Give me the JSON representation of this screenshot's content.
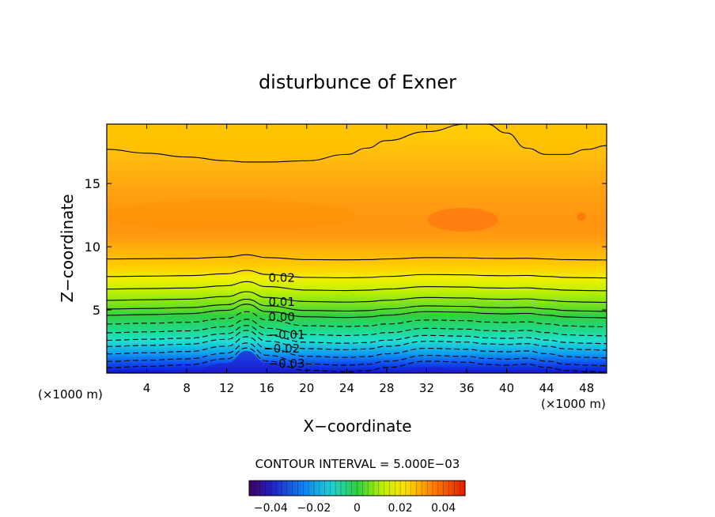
{
  "chart_data": {
    "type": "heatmap",
    "title": "disturbunce of Exner",
    "xlabel": "X−coordinate",
    "ylabel": "Z−coordinate",
    "x_unit_left": "(×1000 m)",
    "x_unit_right": "(×1000 m)",
    "xlim": [
      0,
      50
    ],
    "ylim": [
      0,
      19.7
    ],
    "x_ticks": [
      4,
      8,
      12,
      16,
      20,
      24,
      28,
      32,
      36,
      40,
      44,
      48
    ],
    "y_ticks": [
      5,
      10,
      15
    ],
    "contour_interval_text": "CONTOUR INTERVAL = 5.000E−03",
    "contour_labels": [
      {
        "text": "0.02",
        "x": 17.5,
        "z": 7.6
      },
      {
        "text": "0.01",
        "x": 17.5,
        "z": 5.7
      },
      {
        "text": "0.00",
        "x": 17.5,
        "z": 4.5
      },
      {
        "text": "−0.01",
        "x": 18.0,
        "z": 3.1
      },
      {
        "text": "−0.02",
        "x": 17.5,
        "z": 2.0
      },
      {
        "text": "−0.03",
        "x": 18.0,
        "z": 0.8
      }
    ],
    "profile_x": [
      0,
      4,
      8,
      12,
      14,
      16,
      20,
      24,
      26,
      28,
      32,
      36,
      38,
      40,
      42,
      44,
      46,
      48,
      50
    ],
    "profile_top_contour": [
      17.7,
      17.4,
      17.1,
      16.8,
      16.7,
      16.7,
      16.8,
      17.3,
      17.8,
      18.4,
      19.1,
      19.7,
      19.7,
      19.0,
      17.8,
      17.3,
      17.3,
      17.7,
      18.0
    ],
    "profile_bottom_bump": [
      0.0,
      0.0,
      0.1,
      0.5,
      1.1,
      0.5,
      0.1,
      0.0,
      0.0,
      0.1,
      0.3,
      0.2,
      0.1,
      0.1,
      0.2,
      0.1,
      0.0,
      0.0,
      0.0
    ],
    "colorbar": {
      "ticks": [
        "−0.04",
        "−0.02",
        "0",
        "0.02",
        "0.04"
      ],
      "range": [
        -0.05,
        0.05
      ]
    }
  }
}
